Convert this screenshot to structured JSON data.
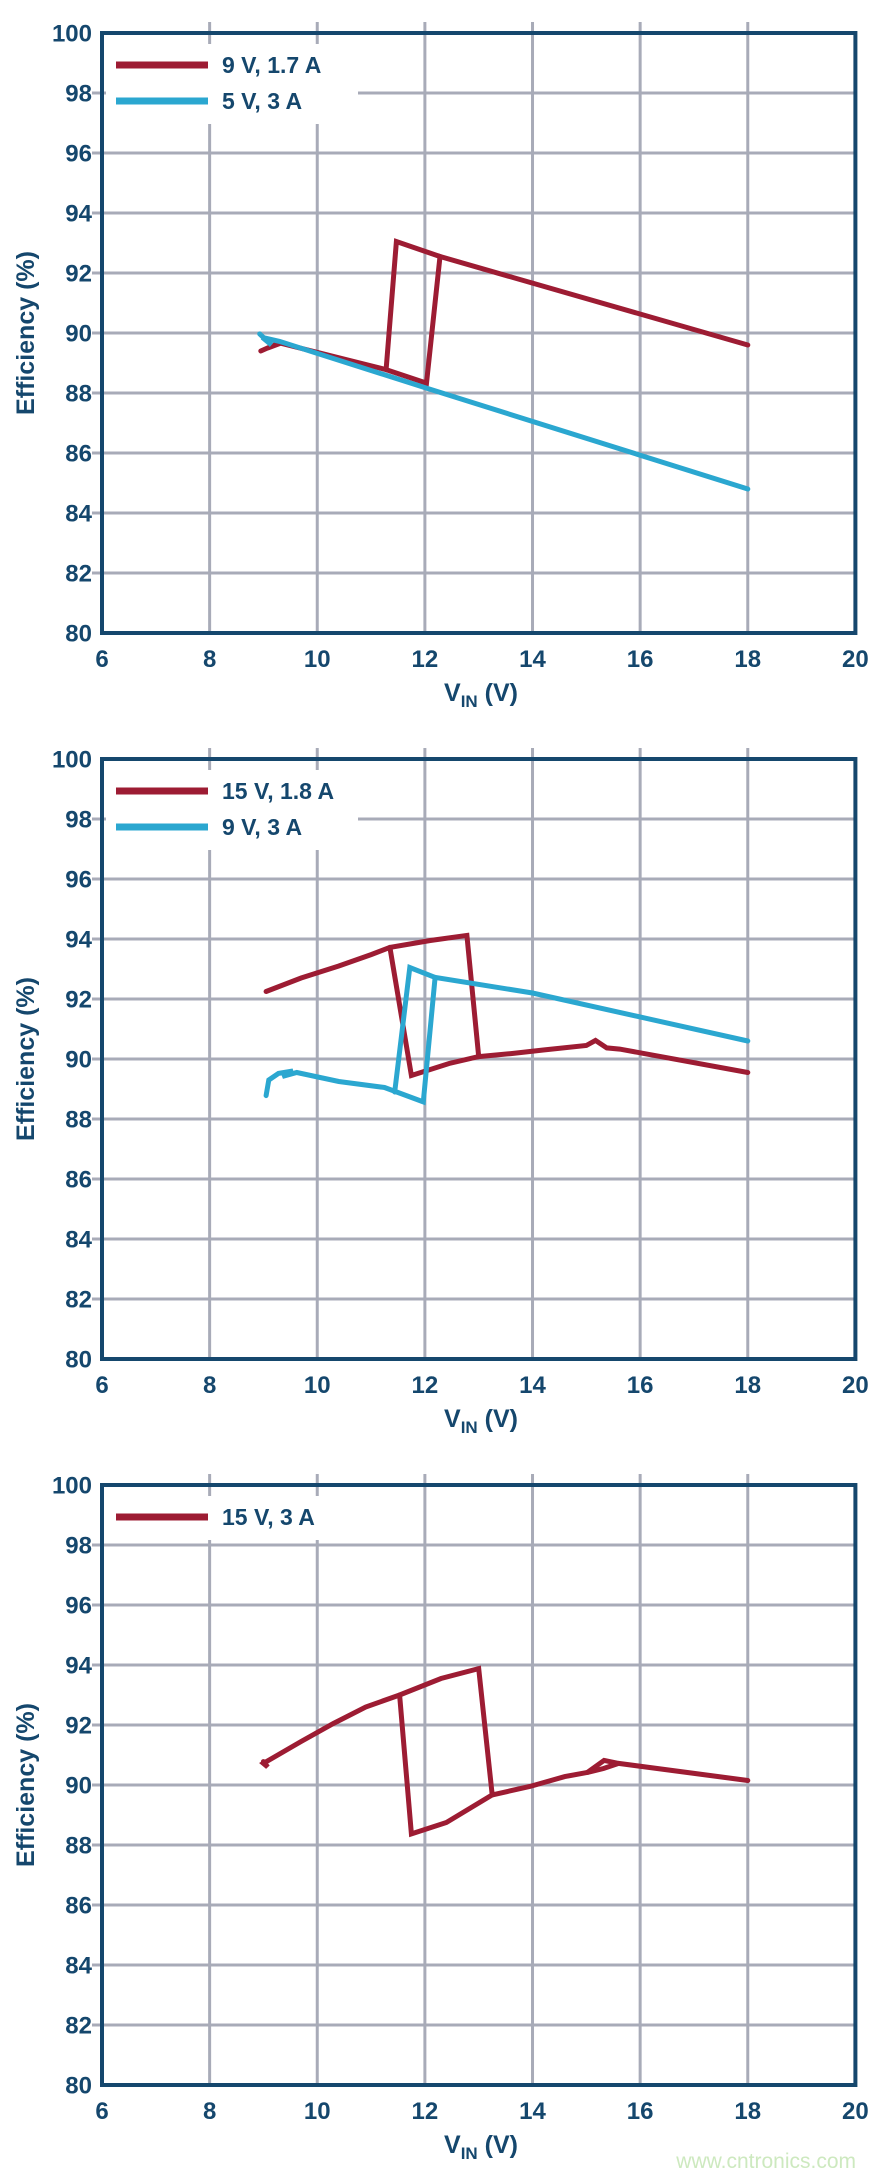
{
  "page": {
    "watermark": "www.cntronics.com",
    "background": "#ffffff"
  },
  "colors": {
    "axis_frame": "#15476d",
    "text": "#15476d",
    "grid": "#a8abb8",
    "series_red": "#9d1c33",
    "series_cyan": "#2ba7d0",
    "legend_bg": "#ffffff",
    "watermark": "#cde9bf"
  },
  "axes": {
    "x": {
      "title_main": "V",
      "title_sub": "IN",
      "title_unit": " (V)",
      "min": 6,
      "max": 20,
      "tick_labels": [
        "6",
        "8",
        "10",
        "12",
        "14",
        "16",
        "18",
        "20"
      ],
      "tick_values": [
        6,
        8,
        10,
        12,
        14,
        16,
        18,
        20
      ],
      "grid_values": [
        8,
        10,
        12,
        14,
        16,
        18
      ]
    },
    "y": {
      "title": "Efficiency (%)",
      "min": 80,
      "max": 100,
      "tick_labels": [
        "100",
        "98",
        "96",
        "94",
        "92",
        "90",
        "88",
        "86",
        "84",
        "82",
        "80"
      ],
      "tick_values": [
        100,
        98,
        96,
        94,
        92,
        90,
        88,
        86,
        84,
        82,
        80
      ],
      "grid_values": [
        82,
        84,
        86,
        88,
        90,
        92,
        94,
        96,
        98
      ]
    }
  },
  "chart_data": [
    {
      "type": "line",
      "title": "",
      "xlabel": "VIN (V)",
      "ylabel": "Efficiency (%)",
      "xlim": [
        6,
        20
      ],
      "ylim": [
        80,
        100
      ],
      "grid": true,
      "legend_position": "top-left",
      "legend": [
        {
          "label": "9 V, 1.7 A",
          "color": "series_red"
        },
        {
          "label": "5 V, 3 A",
          "color": "series_cyan"
        }
      ],
      "series": [
        {
          "name": "9 V, 1.7 A",
          "color": "series_red",
          "paths": [
            [
              [
                8.95,
                89.4
              ],
              [
                9.3,
                89.68
              ],
              [
                9.08,
                89.5
              ],
              [
                9.32,
                89.66
              ],
              [
                11.28,
                88.78
              ],
              [
                12.03,
                88.33
              ],
              [
                12.28,
                92.55
              ],
              [
                18.0,
                89.6
              ]
            ],
            [
              [
                11.28,
                88.78
              ],
              [
                11.47,
                93.05
              ],
              [
                12.28,
                92.55
              ]
            ]
          ]
        },
        {
          "name": "5 V, 3 A",
          "color": "series_cyan",
          "paths": [
            [
              [
                8.93,
                89.97
              ],
              [
                9.15,
                89.6
              ],
              [
                8.98,
                89.85
              ],
              [
                9.3,
                89.72
              ],
              [
                12.0,
                88.18
              ],
              [
                18.0,
                84.8
              ]
            ]
          ]
        }
      ]
    },
    {
      "type": "line",
      "title": "",
      "xlabel": "VIN (V)",
      "ylabel": "Efficiency (%)",
      "xlim": [
        6,
        20
      ],
      "ylim": [
        80,
        100
      ],
      "grid": true,
      "legend_position": "top-left",
      "legend": [
        {
          "label": "15 V, 1.8 A",
          "color": "series_red"
        },
        {
          "label": "9 V, 3 A",
          "color": "series_cyan"
        }
      ],
      "series": [
        {
          "name": "15 V, 1.8 A",
          "color": "series_red",
          "paths": [
            [
              [
                9.05,
                92.25
              ],
              [
                9.7,
                92.7
              ],
              [
                10.4,
                93.1
              ],
              [
                11.0,
                93.48
              ],
              [
                11.35,
                93.72
              ],
              [
                12.1,
                93.95
              ],
              [
                12.78,
                94.12
              ],
              [
                13.0,
                90.08
              ],
              [
                13.6,
                90.18
              ],
              [
                14.2,
                90.3
              ],
              [
                15.0,
                90.45
              ],
              [
                15.17,
                90.62
              ],
              [
                15.38,
                90.37
              ],
              [
                15.62,
                90.33
              ],
              [
                18.0,
                89.55
              ]
            ],
            [
              [
                11.35,
                93.72
              ],
              [
                11.75,
                89.45
              ],
              [
                12.45,
                89.85
              ],
              [
                13.0,
                90.08
              ]
            ]
          ]
        },
        {
          "name": "9 V, 3 A",
          "color": "series_cyan",
          "paths": [
            [
              [
                9.05,
                88.78
              ],
              [
                9.1,
                89.3
              ],
              [
                9.28,
                89.52
              ],
              [
                9.55,
                89.6
              ],
              [
                9.35,
                89.42
              ],
              [
                9.62,
                89.55
              ],
              [
                10.4,
                89.25
              ],
              [
                11.25,
                89.05
              ],
              [
                11.97,
                88.57
              ],
              [
                12.19,
                92.72
              ],
              [
                14.0,
                92.2
              ],
              [
                18.0,
                90.6
              ]
            ],
            [
              [
                11.44,
                88.9
              ],
              [
                11.72,
                93.05
              ],
              [
                12.19,
                92.72
              ]
            ]
          ]
        }
      ]
    },
    {
      "type": "line",
      "title": "",
      "xlabel": "VIN (V)",
      "ylabel": "Efficiency (%)",
      "xlim": [
        6,
        20
      ],
      "ylim": [
        80,
        100
      ],
      "grid": true,
      "legend_position": "top-left",
      "legend": [
        {
          "label": "15 V, 3 A",
          "color": "series_red"
        }
      ],
      "series": [
        {
          "name": "15 V, 3 A",
          "color": "series_red",
          "paths": [
            [
              [
                9.0,
                90.78
              ],
              [
                9.08,
                90.6
              ],
              [
                9.0,
                90.72
              ],
              [
                9.7,
                91.45
              ],
              [
                10.3,
                92.05
              ],
              [
                10.9,
                92.6
              ],
              [
                11.53,
                93.0
              ],
              [
                12.3,
                93.55
              ],
              [
                13.0,
                93.88
              ],
              [
                13.25,
                89.67
              ],
              [
                13.95,
                89.95
              ],
              [
                14.6,
                90.28
              ],
              [
                15.02,
                90.42
              ],
              [
                15.33,
                90.82
              ],
              [
                15.6,
                90.72
              ],
              [
                18.0,
                90.15
              ]
            ],
            [
              [
                11.53,
                93.0
              ],
              [
                11.75,
                88.37
              ],
              [
                12.4,
                88.75
              ],
              [
                13.25,
                89.67
              ]
            ],
            [
              [
                15.02,
                90.42
              ],
              [
                15.32,
                90.55
              ],
              [
                15.6,
                90.72
              ]
            ]
          ]
        }
      ]
    }
  ]
}
